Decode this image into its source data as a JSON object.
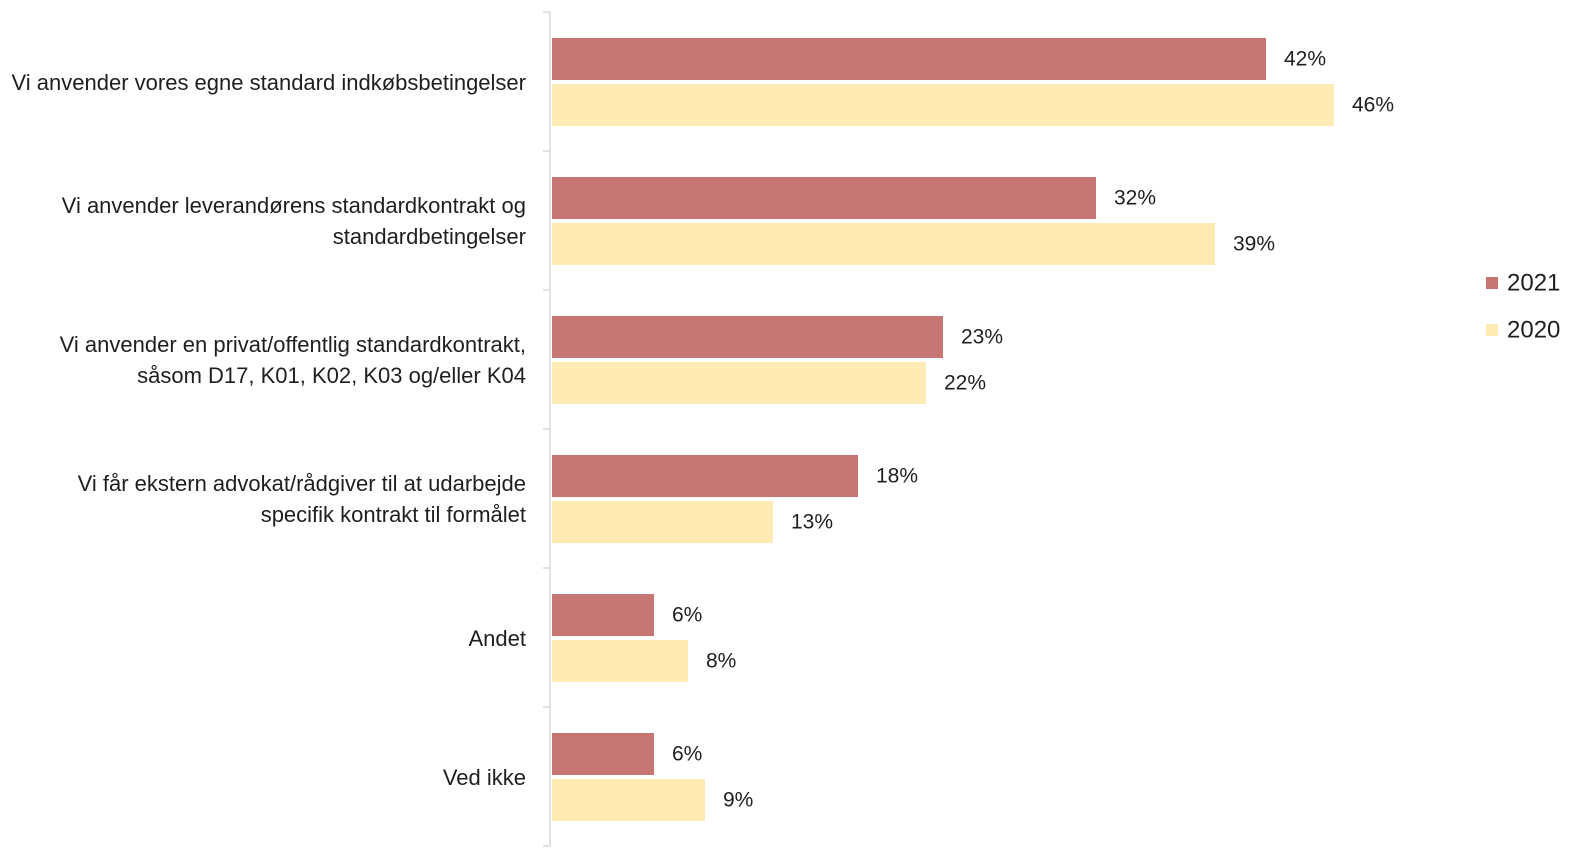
{
  "chart_data": {
    "type": "hbar",
    "categories": [
      "Vi anvender vores egne standard indkøbsbetingelser",
      "Vi anvender leverandørens standardkontrakt og standardbetingelser",
      "Vi anvender en privat/offentlig standardkontrakt, såsom D17, K01, K02, K03 og/eller K04",
      "Vi får ekstern advokat/rådgiver til at udarbejde specifik kontrakt til formålet",
      "Andet",
      "Ved ikke"
    ],
    "series": [
      {
        "name": "2021",
        "color": "#c87673",
        "values": [
          42,
          32,
          23,
          18,
          6,
          6
        ],
        "value_labels": [
          "42%",
          "32%",
          "23%",
          "18%",
          "6%",
          "6%"
        ]
      },
      {
        "name": "2020",
        "color": "#fdebb3",
        "values": [
          46,
          39,
          22,
          13,
          8,
          9
        ],
        "value_labels": [
          "46%",
          "39%",
          "22%",
          "13%",
          "8%",
          "9%"
        ]
      }
    ],
    "legend": "right"
  }
}
